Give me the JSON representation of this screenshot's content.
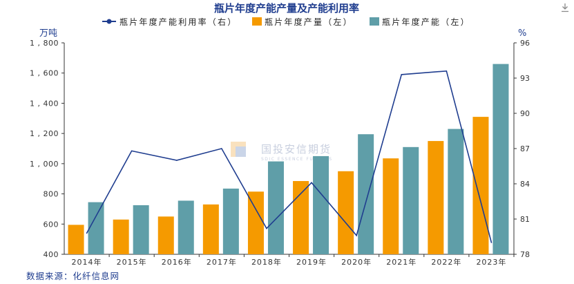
{
  "chart_data": {
    "type": "bar",
    "title": "瓶片年度产能产量及产能利用率",
    "categories": [
      "2014年",
      "2015年",
      "2016年",
      "2017年",
      "2018年",
      "2019年",
      "2020年",
      "2021年",
      "2022年",
      "2023年"
    ],
    "series": [
      {
        "name": "瓶片年度产能利用率（右）",
        "type": "line",
        "axis": "right",
        "color": "#1f3d8f",
        "values": [
          79.8,
          86.8,
          86.0,
          87.0,
          80.2,
          84.1,
          79.6,
          93.3,
          93.6,
          79.0
        ]
      },
      {
        "name": "瓶片年度产量（左）",
        "type": "bar",
        "axis": "left",
        "color": "#f59a00",
        "values": [
          595,
          630,
          650,
          730,
          815,
          885,
          950,
          1035,
          1150,
          1310
        ]
      },
      {
        "name": "瓶片年度产能（左）",
        "type": "bar",
        "axis": "left",
        "color": "#5f9ea8",
        "values": [
          745,
          725,
          755,
          835,
          1015,
          1050,
          1195,
          1110,
          1230,
          1660
        ]
      }
    ],
    "y_left": {
      "unit": "万吨",
      "min": 400,
      "max": 1800,
      "ticks": [
        400,
        600,
        800,
        1000,
        1200,
        1400,
        1600,
        1800
      ],
      "tick_labels": [
        "400",
        "600",
        "800",
        "1 , 000",
        "1 , 200",
        "1 , 400",
        "1 , 600",
        "1 , 800"
      ]
    },
    "y_right": {
      "unit": "%",
      "min": 78,
      "max": 96,
      "ticks": [
        78,
        81,
        84,
        87,
        90,
        93,
        96
      ]
    },
    "legend_position": "top",
    "grid": false
  },
  "source": "数据来源：化纤信息网",
  "watermark": {
    "name": "国投安信期货",
    "subtitle": "SDIC ESSENCE FUTURES"
  },
  "icons": {
    "download": "download-icon"
  }
}
